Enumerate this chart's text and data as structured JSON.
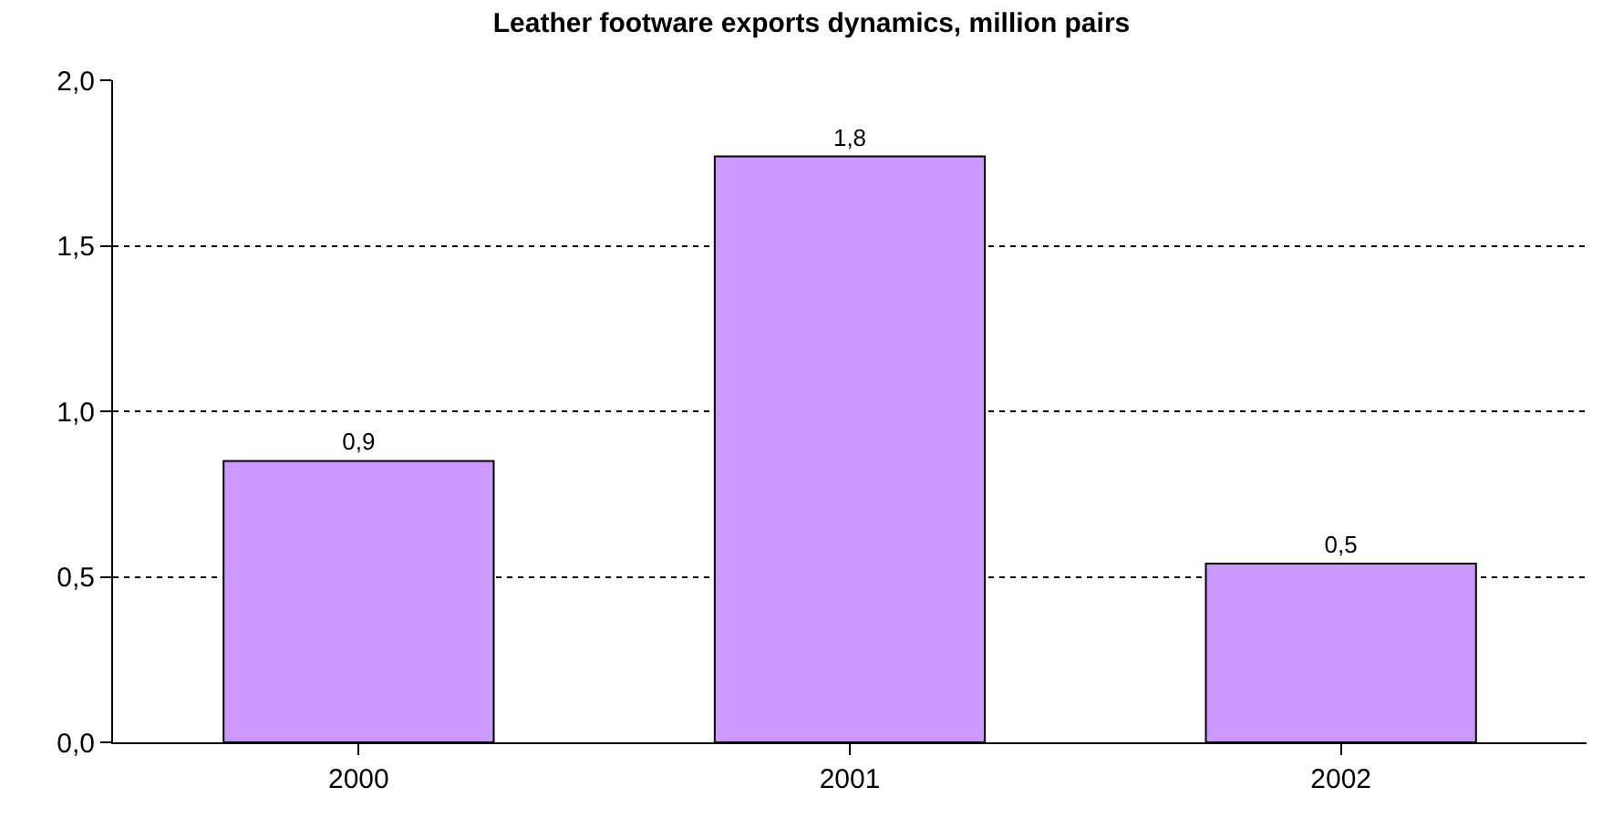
{
  "chart_data": {
    "type": "bar",
    "title": "Leather footware exports dynamics, million pairs",
    "categories": [
      "2000",
      "2001",
      "2002"
    ],
    "values": [
      0.85,
      1.77,
      0.54
    ],
    "value_labels": [
      "0,9",
      "1,8",
      "0,5"
    ],
    "color": "#cc99ff",
    "ylim": [
      0,
      2
    ],
    "yticks": [
      {
        "value": 0,
        "label": "0,0"
      },
      {
        "value": 0.5,
        "label": "0,5"
      },
      {
        "value": 1,
        "label": "1,0"
      },
      {
        "value": 1.5,
        "label": "1,5"
      },
      {
        "value": 2,
        "label": "2,0"
      }
    ],
    "grid": "y",
    "legend": false
  }
}
